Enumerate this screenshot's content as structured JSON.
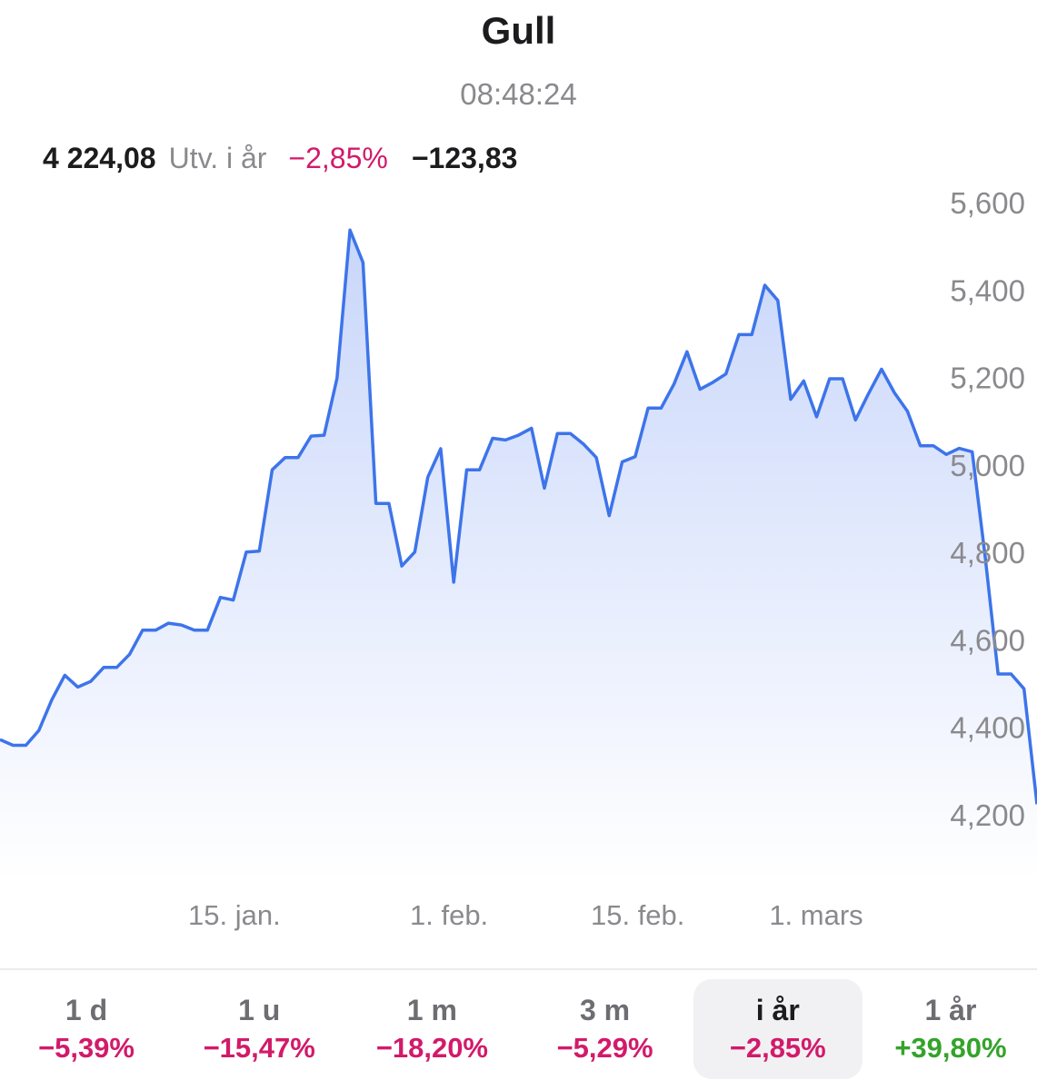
{
  "header": {
    "title": "Gull",
    "time": "08:48:24"
  },
  "quote": {
    "price": "4 224,08",
    "label": "Utv. i år",
    "change_pct": "−2,85%",
    "change_abs": "−123,83"
  },
  "colors": {
    "negative": "#d21a6a",
    "positive": "#34a32a",
    "line": "#3d74ea",
    "fill_top": "#c8d6fa",
    "fill_bottom": "#ffffff"
  },
  "chart_data": {
    "type": "area",
    "title": "Gull",
    "y_tick_labels": [
      "5,600",
      "5,400",
      "5,200",
      "5,000",
      "4,800",
      "4,600",
      "4,400",
      "4,200"
    ],
    "y_ticks": [
      5600,
      5400,
      5200,
      5000,
      4800,
      4600,
      4400,
      4200
    ],
    "ylim": [
      4200,
      5600
    ],
    "axis_position": "right",
    "grid": false,
    "x_tick_labels": [
      {
        "label": "15. jan.",
        "t": 0.226
      },
      {
        "label": "1. feb.",
        "t": 0.433
      },
      {
        "label": "15. feb.",
        "t": 0.615
      },
      {
        "label": "1. mars",
        "t": 0.787
      }
    ],
    "series": [
      {
        "values": [
          4372,
          4359,
          4359,
          4393,
          4463,
          4519,
          4492,
          4505,
          4537,
          4537,
          4567,
          4622,
          4622,
          4638,
          4634,
          4622,
          4622,
          4697,
          4691,
          4801,
          4803,
          4989,
          5017,
          5017,
          5066,
          5068,
          5198,
          5537,
          5463,
          4912,
          4912,
          4769,
          4801,
          4972,
          5037,
          4732,
          4989,
          4989,
          5061,
          5057,
          5068,
          5084,
          4947,
          5072,
          5072,
          5048,
          5017,
          4884,
          5007,
          5019,
          5130,
          5130,
          5185,
          5259,
          5173,
          5189,
          5208,
          5298,
          5298,
          5411,
          5376,
          5150,
          5192,
          5110,
          5197,
          5197,
          5103,
          5163,
          5219,
          5165,
          5123,
          5044,
          5044,
          5024,
          5038,
          5030,
          4790,
          4522,
          4522,
          4488,
          4224
        ]
      }
    ]
  },
  "periods": [
    {
      "label": "1 d",
      "change": "−5,39%",
      "dir": "negative",
      "active": false
    },
    {
      "label": "1 u",
      "change": "−15,47%",
      "dir": "negative",
      "active": false
    },
    {
      "label": "1 m",
      "change": "−18,20%",
      "dir": "negative",
      "active": false
    },
    {
      "label": "3 m",
      "change": "−5,29%",
      "dir": "negative",
      "active": false
    },
    {
      "label": "i år",
      "change": "−2,85%",
      "dir": "negative",
      "active": true
    },
    {
      "label": "1 år",
      "change": "+39,80%",
      "dir": "positive",
      "active": false
    }
  ]
}
